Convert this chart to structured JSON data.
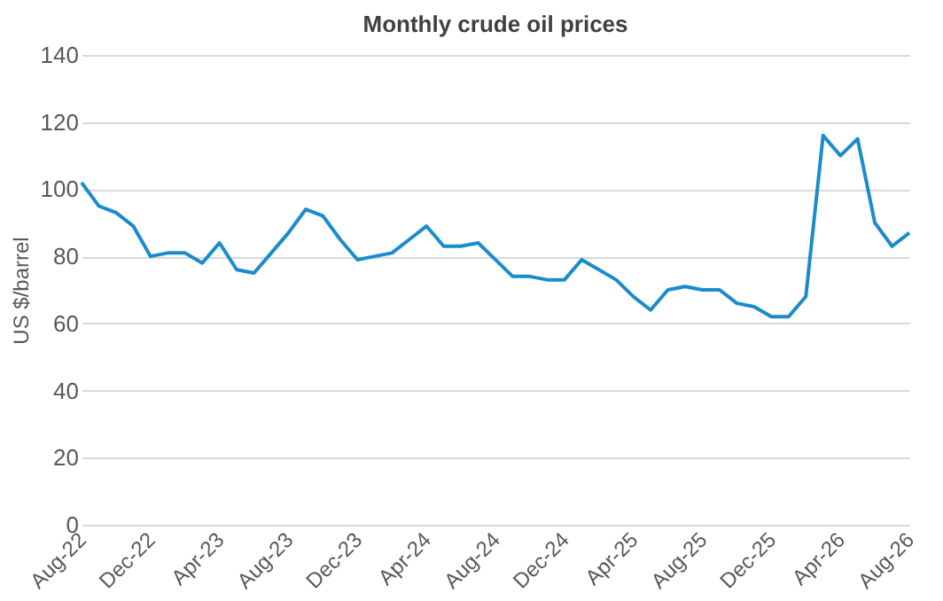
{
  "chart_data": {
    "type": "line",
    "title": "Monthly crude oil prices",
    "ylabel": "US $/barrel",
    "categories": [
      "Aug-22",
      null,
      null,
      null,
      "Dec-22",
      null,
      null,
      null,
      "Apr-23",
      null,
      null,
      null,
      "Aug-23",
      null,
      null,
      null,
      "Dec-23",
      null,
      null,
      null,
      "Apr-24",
      null,
      null,
      null,
      "Aug-24",
      null,
      null,
      null,
      "Dec-24",
      null,
      null,
      null,
      "Apr-25",
      null,
      null,
      null,
      "Aug-25",
      null,
      null,
      null,
      "Dec-25",
      null,
      null,
      null,
      "Apr-26",
      null,
      null,
      null,
      "Aug-26"
    ],
    "series": [
      {
        "color": "#1a8ccb",
        "values": [
          102,
          95,
          93,
          89,
          80,
          81,
          81,
          78,
          84,
          76,
          75,
          81,
          87,
          94,
          92,
          85,
          79,
          80,
          81,
          85,
          89,
          83,
          83,
          84,
          79,
          74,
          74,
          73,
          73,
          79,
          76,
          73,
          68,
          64,
          70,
          71,
          70,
          70,
          66,
          65,
          62,
          62,
          68,
          116,
          110,
          115,
          90,
          83,
          87
        ]
      }
    ],
    "ylim": [
      0,
      140
    ],
    "yticks": [
      0,
      20,
      40,
      60,
      80,
      100,
      120,
      140
    ],
    "grid": "y",
    "legend": false,
    "marker": "none",
    "line_style": "solid"
  }
}
